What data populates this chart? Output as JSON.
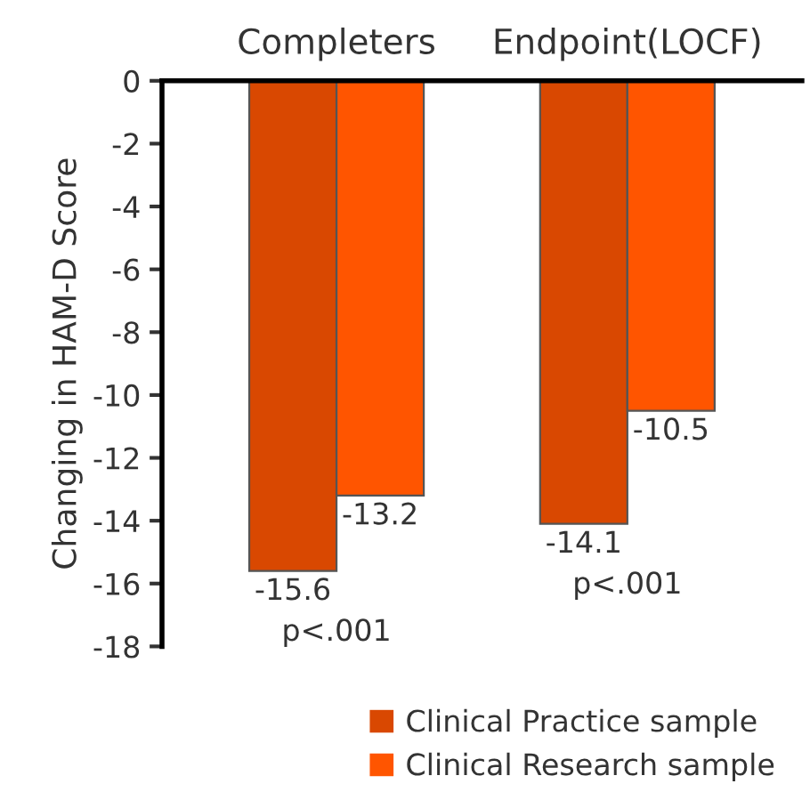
{
  "chart_data": {
    "type": "bar",
    "ylabel": "Changing in HAM-D Score",
    "categories": [
      "Completers",
      "Endpoint(LOCF)"
    ],
    "series": [
      {
        "name": "Clinical Practice sample",
        "color": "#d94801",
        "values": [
          -15.6,
          -14.1
        ]
      },
      {
        "name": "Clinical Research sample",
        "color": "#ff5500",
        "values": [
          -13.2,
          -10.5
        ]
      }
    ],
    "ylim": [
      -18,
      0
    ],
    "yticks": [
      0,
      -2,
      -4,
      -6,
      -8,
      -10,
      -12,
      -14,
      -16,
      -18
    ],
    "data_labels": true,
    "grid": false,
    "legend": "bottom",
    "annotations": [
      "p<.001",
      "p<.001"
    ]
  }
}
